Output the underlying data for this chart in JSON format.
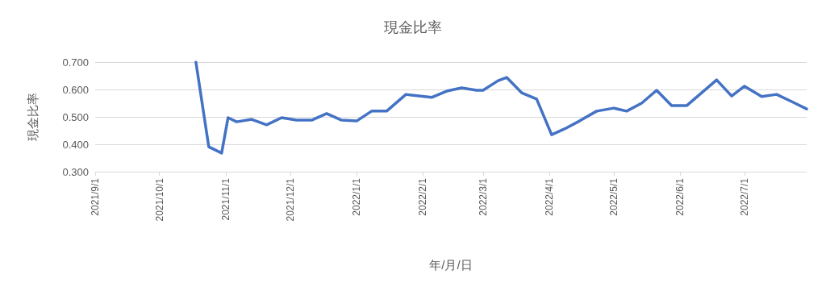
{
  "chart_data": {
    "type": "line",
    "title": "現金比率",
    "xlabel": "年/月/日",
    "ylabel": "現金比率",
    "x": [
      "2021-10-18",
      "2021-10-24",
      "2021-10-30",
      "2021-11-02",
      "2021-11-06",
      "2021-11-13",
      "2021-11-20",
      "2021-11-27",
      "2021-12-04",
      "2021-12-11",
      "2021-12-18",
      "2021-12-25",
      "2022-01-01",
      "2022-01-08",
      "2022-01-15",
      "2022-01-24",
      "2022-02-05",
      "2022-02-12",
      "2022-02-19",
      "2022-02-26",
      "2022-03-01",
      "2022-03-08",
      "2022-03-12",
      "2022-03-19",
      "2022-03-26",
      "2022-04-02",
      "2022-04-08",
      "2022-04-15",
      "2022-04-23",
      "2022-05-01",
      "2022-05-07",
      "2022-05-14",
      "2022-05-21",
      "2022-05-28",
      "2022-06-04",
      "2022-06-11",
      "2022-06-18",
      "2022-06-25",
      "2022-07-01",
      "2022-07-09",
      "2022-07-16",
      "2022-07-23",
      "2022-07-30"
    ],
    "series": [
      {
        "color": "#4472c4",
        "values": [
          0.7,
          0.391,
          0.368,
          0.497,
          0.482,
          0.491,
          0.471,
          0.497,
          0.488,
          0.488,
          0.512,
          0.488,
          0.485,
          0.521,
          0.521,
          0.582,
          0.571,
          0.594,
          0.606,
          0.597,
          0.597,
          0.632,
          0.644,
          0.588,
          0.565,
          0.435,
          0.456,
          0.485,
          0.521,
          0.532,
          0.521,
          0.55,
          0.597,
          0.541,
          0.541,
          0.588,
          0.635,
          0.576,
          0.612,
          0.574,
          0.582,
          0.556,
          0.529
        ]
      }
    ],
    "xlim": [
      "2021-09-01",
      "2022-07-30"
    ],
    "xticks": [
      {
        "value": "2021-09-01",
        "label": "2021/9/1"
      },
      {
        "value": "2021-10-01",
        "label": "2021/10/1"
      },
      {
        "value": "2021-11-01",
        "label": "2021/11/1"
      },
      {
        "value": "2021-12-01",
        "label": "2021/12/1"
      },
      {
        "value": "2022-01-01",
        "label": "2022/1/1"
      },
      {
        "value": "2022-02-01",
        "label": "2022/2/1"
      },
      {
        "value": "2022-03-01",
        "label": "2022/3/1"
      },
      {
        "value": "2022-04-01",
        "label": "2022/4/1"
      },
      {
        "value": "2022-05-01",
        "label": "2022/5/1"
      },
      {
        "value": "2022-06-01",
        "label": "2022/6/1"
      },
      {
        "value": "2022-07-01",
        "label": "2022/7/1"
      }
    ],
    "ylim": [
      0.3,
      0.7
    ],
    "yticks": [
      {
        "value": 0.3,
        "label": "0.300"
      },
      {
        "value": 0.4,
        "label": "0.400"
      },
      {
        "value": 0.5,
        "label": "0.500"
      },
      {
        "value": 0.6,
        "label": "0.600"
      },
      {
        "value": 0.7,
        "label": "0.700"
      }
    ],
    "grid": "y",
    "marker": "none",
    "line_style": "solid"
  }
}
